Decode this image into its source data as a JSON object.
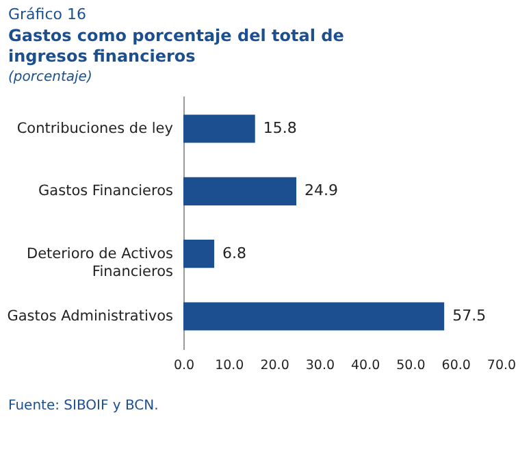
{
  "chart_data": {
    "type": "bar",
    "orientation": "horizontal",
    "title": "Gastos como porcentaje del total de ingresos financieros",
    "subtitle": "(porcentaje)",
    "annotations": [
      "Gráfico 16",
      "Fuente: SIBOIF y BCN."
    ],
    "categories": [
      "Contribuciones de ley",
      "Gastos Financieros",
      "Deterioro de Activos Financieros",
      "Gastos Administrativos"
    ],
    "values": [
      15.8,
      24.9,
      6.8,
      57.5
    ],
    "color": "#1b4f8f",
    "data_labels": true,
    "xlim": [
      0,
      70
    ],
    "xticks": [
      {
        "value": 0,
        "label": "0.0"
      },
      {
        "value": 10,
        "label": "10.0"
      },
      {
        "value": 20,
        "label": "20.0"
      },
      {
        "value": 30,
        "label": "30.0"
      },
      {
        "value": 40,
        "label": "40.0"
      },
      {
        "value": 50,
        "label": "50.0"
      },
      {
        "value": 60,
        "label": "60.0"
      },
      {
        "value": 70,
        "label": "70.0"
      }
    ],
    "grid": false
  }
}
